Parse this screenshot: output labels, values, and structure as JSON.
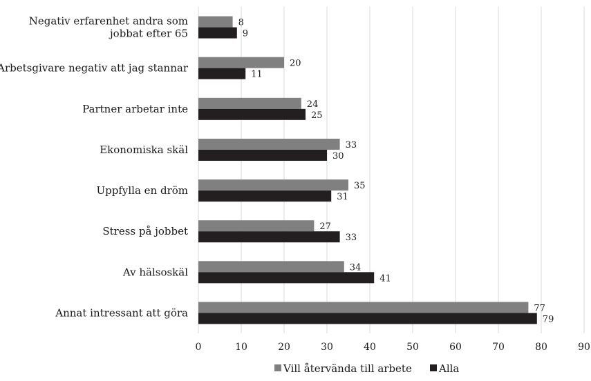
{
  "chart_data": {
    "type": "bar",
    "orientation": "horizontal",
    "categories": [
      [
        "Negativ erfarenhet andra som",
        "jobbat efter 65"
      ],
      [
        "Arbetsgivare negativ att jag stannar"
      ],
      [
        "Partner arbetar inte"
      ],
      [
        "Ekonomiska skäl"
      ],
      [
        "Uppfylla en dröm"
      ],
      [
        "Stress på jobbet"
      ],
      [
        "Av hälsoskäl"
      ],
      [
        "Annat intressant att göra"
      ]
    ],
    "series": [
      {
        "name": "Vill återvända till arbete",
        "color": "#808080",
        "values": [
          8,
          20,
          24,
          33,
          35,
          27,
          34,
          77
        ]
      },
      {
        "name": "Alla",
        "color": "#231f20",
        "values": [
          9,
          11,
          25,
          30,
          31,
          33,
          41,
          79
        ]
      }
    ],
    "xlim": [
      0,
      90
    ],
    "xticks": [
      "0",
      "10",
      "20",
      "30",
      "40",
      "50",
      "60",
      "70",
      "80",
      "90"
    ],
    "grid": true,
    "legend_position": "bottom"
  }
}
